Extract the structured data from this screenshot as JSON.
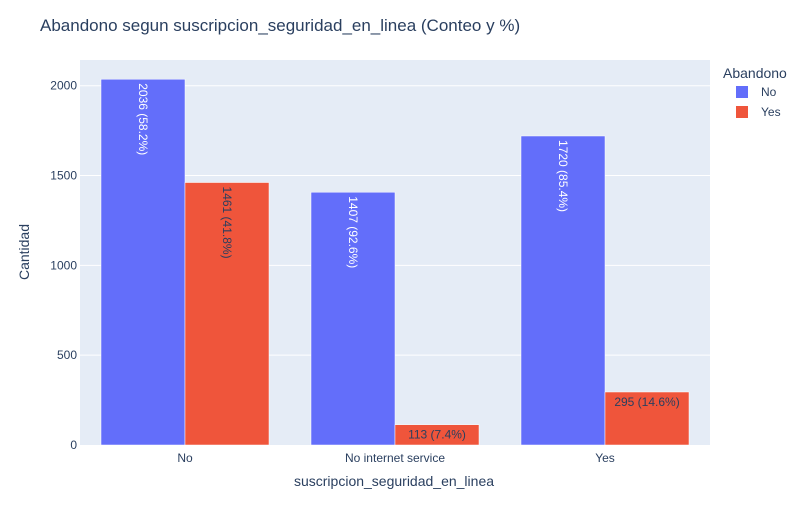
{
  "chart_data": {
    "type": "bar",
    "title": "Abandono segun suscripcion_seguridad_en_linea (Conteo y %)",
    "xlabel": "suscripcion_seguridad_en_linea",
    "ylabel": "Cantidad",
    "categories": [
      "No",
      "No internet service",
      "Yes"
    ],
    "ylim": [
      0,
      2143
    ],
    "yticks": [
      0,
      500,
      1000,
      1500,
      2000
    ],
    "legend": {
      "title": "Abandono",
      "placement": "top-right"
    },
    "series": [
      {
        "name": "No",
        "color": "#636efa",
        "values": [
          2036,
          1407,
          1720
        ],
        "labels": [
          "2036 (58.2%)",
          "1407 (92.6%)",
          "1720 (85.4%)"
        ]
      },
      {
        "name": "Yes",
        "color": "#ef553b",
        "values": [
          1461,
          113,
          295
        ],
        "labels": [
          "1461 (41.8%)",
          "113 (7.4%)",
          "295 (14.6%)"
        ]
      }
    ]
  }
}
